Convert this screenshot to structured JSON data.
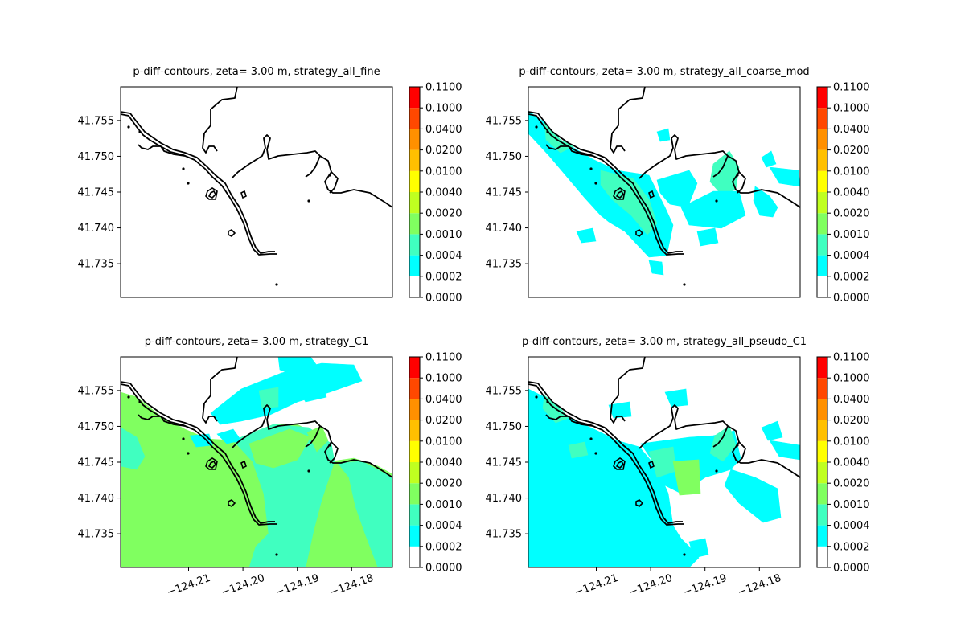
{
  "figure": {
    "panels": [
      {
        "title": "p-diff-contours, zeta= 3.00 m, strategy_all_fine",
        "field": "none",
        "show_y_ticks": true,
        "show_x_ticks": false
      },
      {
        "title": "p-diff-contours, zeta= 3.00 m, strategy_all_coarse_mod",
        "field": "coarse_mod",
        "show_y_ticks": true,
        "show_x_ticks": false
      },
      {
        "title": "p-diff-contours, zeta= 3.00 m, strategy_C1",
        "field": "c1",
        "show_y_ticks": true,
        "show_x_ticks": true
      },
      {
        "title": "p-diff-contours, zeta= 3.00 m, strategy_all_pseudo_C1",
        "field": "pseudo_c1",
        "show_y_ticks": true,
        "show_x_ticks": true
      }
    ]
  },
  "chart_data": {
    "type": "heatmap",
    "xlim": [
      -124.2225,
      -124.1725
    ],
    "ylim": [
      41.7303,
      41.7597
    ],
    "x_ticks": [
      -124.21,
      -124.2,
      -124.19,
      -124.18
    ],
    "x_tick_labels": [
      "−124.21",
      "−124.20",
      "−124.19",
      "−124.18"
    ],
    "y_ticks": [
      41.735,
      41.74,
      41.745,
      41.75,
      41.755
    ],
    "y_tick_labels": [
      "41.735",
      "41.740",
      "41.745",
      "41.750",
      "41.755"
    ],
    "colorbar": {
      "levels": [
        0.0,
        0.0002,
        0.0004,
        0.001,
        0.002,
        0.004,
        0.01,
        0.02,
        0.04,
        0.1,
        0.11
      ],
      "level_labels": [
        "0.0000",
        "0.0002",
        "0.0004",
        "0.0010",
        "0.0020",
        "0.0040",
        "0.0100",
        "0.0200",
        "0.0400",
        "0.1000",
        "0.1100"
      ],
      "colors": [
        "#ffffff",
        "#00ffff",
        "#40ffc0",
        "#80ff60",
        "#c0ff20",
        "#ffff00",
        "#ffc000",
        "#ff9000",
        "#ff4800",
        "#ff0000"
      ]
    }
  }
}
